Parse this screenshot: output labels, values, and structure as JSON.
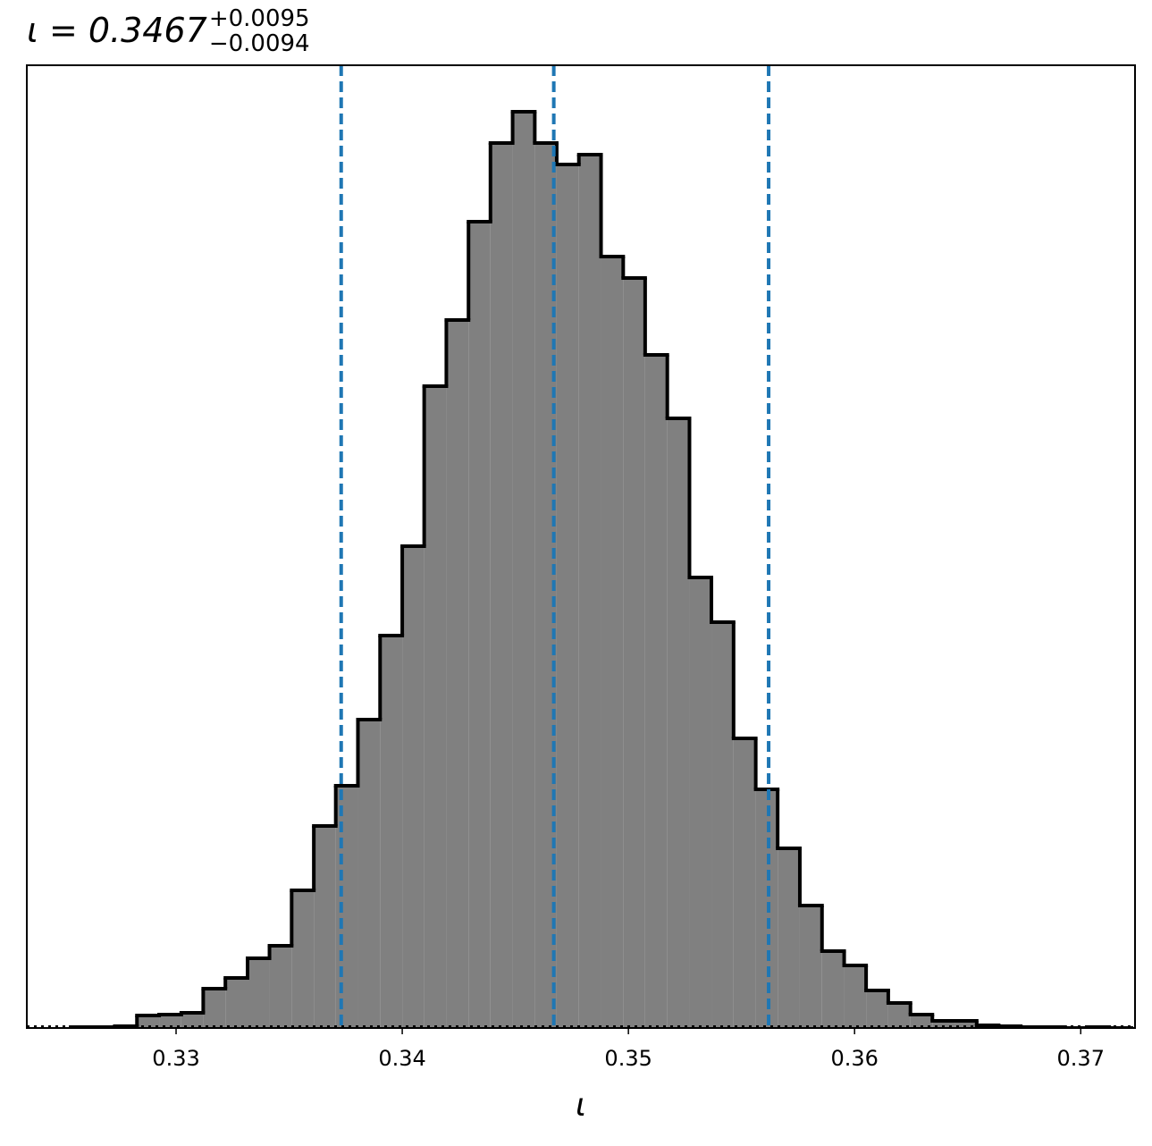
{
  "chart_data": {
    "type": "histogram",
    "title": {
      "main": "ι = 0.3467",
      "upper": "+0.0095",
      "lower": "−0.0094"
    },
    "xlabel": "ι",
    "bins": [
      0.32534,
      0.32632,
      0.32729,
      0.32827,
      0.32925,
      0.33023,
      0.3312,
      0.33218,
      0.33316,
      0.33413,
      0.33511,
      0.33609,
      0.33706,
      0.33804,
      0.33902,
      0.34,
      0.34097,
      0.34195,
      0.34293,
      0.3439,
      0.34488,
      0.34586,
      0.34683,
      0.34781,
      0.34879,
      0.34977,
      0.35074,
      0.35172,
      0.3527,
      0.35367,
      0.35465,
      0.35563,
      0.3566,
      0.35758,
      0.35856,
      0.35954,
      0.36051,
      0.36149,
      0.36247,
      0.36344,
      0.36442,
      0.3654,
      0.36637,
      0.36735,
      0.36833,
      0.36931,
      0.37028,
      0.37126,
      0.37224
    ],
    "values": [
      1,
      1,
      2,
      14,
      15,
      17,
      44,
      56,
      78,
      92,
      154,
      226,
      271,
      345,
      439,
      539,
      718,
      792,
      902,
      990,
      1025,
      990,
      966,
      977,
      863,
      839,
      753,
      682,
      504,
      454,
      324,
      267,
      201,
      137,
      86,
      70,
      42,
      28,
      15,
      8,
      8,
      3,
      2,
      1,
      1,
      0,
      1,
      0
    ],
    "color": "#808080",
    "edge_color": "#000000",
    "vlines": [
      0.3373,
      0.3467,
      0.3562
    ],
    "vline_color": "#1f77b4",
    "xlim": [
      0.3234,
      0.3724
    ],
    "ylim": [
      0,
      1077
    ],
    "xticks": [
      0.33,
      0.34,
      0.35,
      0.36,
      0.37
    ]
  }
}
